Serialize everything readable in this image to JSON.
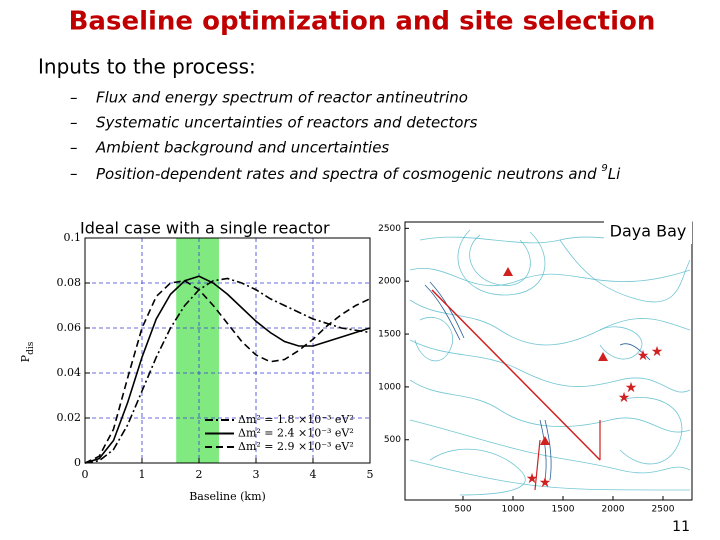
{
  "title": "Baseline optimization and site selection",
  "intro": "Inputs to the process:",
  "bullets": [
    "Flux and energy spectrum of reactor antineutrino",
    "Systematic uncertainties of reactors and detectors",
    "Ambient background and uncertainties",
    {
      "text": "Position-dependent rates and spectra of cosmogenic neutrons and ",
      "sup": "9",
      "tail": "Li"
    }
  ],
  "page_number": "11",
  "chart_data": [
    {
      "type": "line",
      "annotation": "Ideal case with a single reactor",
      "xlabel": "Baseline (km)",
      "ylabel": "P",
      "ylabel_sub": "dis",
      "xlim": [
        0,
        5
      ],
      "ylim": [
        0,
        0.1
      ],
      "xticks": [
        0,
        1,
        2,
        3,
        4,
        5
      ],
      "yticks": [
        0,
        0.02,
        0.04,
        0.06,
        0.08,
        0.1
      ],
      "grid": true,
      "grid_color": "#3b3bd6",
      "band": [
        1.6,
        2.35
      ],
      "band_color": "#80ea80",
      "x": [
        0,
        0.25,
        0.5,
        0.75,
        1,
        1.25,
        1.5,
        1.75,
        2,
        2.25,
        2.5,
        2.75,
        3,
        3.25,
        3.5,
        3.75,
        4,
        4.25,
        4.5,
        4.75,
        5
      ],
      "series": [
        {
          "name": "Δm² = 1.8 ×10⁻³ eV²",
          "color": "#000000",
          "style": "dashdot",
          "values": [
            0,
            0.001,
            0.006,
            0.017,
            0.032,
            0.047,
            0.06,
            0.07,
            0.077,
            0.081,
            0.082,
            0.08,
            0.077,
            0.073,
            0.07,
            0.067,
            0.064,
            0.062,
            0.06,
            0.059,
            0.058
          ]
        },
        {
          "name": "Δm² = 2.4 ×10⁻³ eV²",
          "color": "#000000",
          "style": "solid",
          "values": [
            0,
            0.002,
            0.01,
            0.027,
            0.047,
            0.064,
            0.075,
            0.081,
            0.083,
            0.08,
            0.075,
            0.069,
            0.063,
            0.058,
            0.054,
            0.052,
            0.052,
            0.054,
            0.056,
            0.058,
            0.06
          ]
        },
        {
          "name": "Δm² = 2.9 ×10⁻³ eV²",
          "color": "#000000",
          "style": "dashed",
          "values": [
            0,
            0.003,
            0.015,
            0.038,
            0.06,
            0.074,
            0.08,
            0.081,
            0.077,
            0.07,
            0.062,
            0.054,
            0.048,
            0.045,
            0.046,
            0.05,
            0.055,
            0.061,
            0.066,
            0.07,
            0.073
          ]
        }
      ]
    },
    {
      "type": "map",
      "title": "Daya Bay",
      "xlim": [
        -80,
        2790
      ],
      "ylim": [
        -70,
        2560
      ],
      "xticks": [
        500,
        1000,
        1500,
        2000,
        2500
      ],
      "yticks": [
        500,
        1000,
        1500,
        2000,
        2500
      ]
    }
  ]
}
